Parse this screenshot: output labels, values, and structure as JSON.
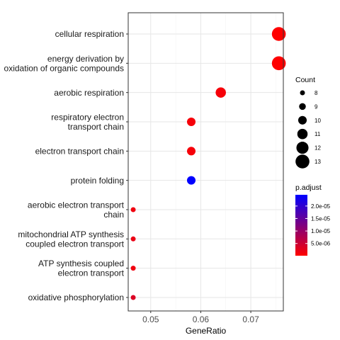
{
  "chart_data": {
    "type": "scatter",
    "xlabel": "GeneRatio",
    "xlim": [
      0.0455,
      0.0765
    ],
    "xticks": [
      0.05,
      0.06,
      0.07
    ],
    "xtick_labels": [
      "0.05",
      "0.06",
      "0.07"
    ],
    "grid": true,
    "legend_placement": "right",
    "categories": [
      "cellular respiration",
      "energy derivation by\noxidation of organic compounds",
      "aerobic respiration",
      "respiratory electron\ntransport chain",
      "electron transport chain",
      "protein folding",
      "aerobic electron transport\nchain",
      "mitochondrial ATP synthesis\ncoupled electron transport",
      "ATP synthesis coupled\nelectron transport",
      "oxidative phosphorylation"
    ],
    "points": [
      {
        "category": "cellular respiration",
        "x": 0.0756,
        "count": 13,
        "p_adjust": 1e-07
      },
      {
        "category": "energy derivation by\noxidation of organic compounds",
        "x": 0.0756,
        "count": 13,
        "p_adjust": 2e-07
      },
      {
        "category": "aerobic respiration",
        "x": 0.064,
        "count": 11,
        "p_adjust": 1e-06
      },
      {
        "category": "respiratory electron\ntransport chain",
        "x": 0.0581,
        "count": 10,
        "p_adjust": 1e-06
      },
      {
        "category": "electron transport chain",
        "x": 0.0581,
        "count": 10,
        "p_adjust": 1e-06
      },
      {
        "category": "protein folding",
        "x": 0.0581,
        "count": 10,
        "p_adjust": 2.45e-05
      },
      {
        "category": "aerobic electron transport\nchain",
        "x": 0.0465,
        "count": 8,
        "p_adjust": 1.5e-06
      },
      {
        "category": "mitochondrial ATP synthesis\ncoupled electron transport",
        "x": 0.0465,
        "count": 8,
        "p_adjust": 2e-06
      },
      {
        "category": "ATP synthesis coupled\nelectron transport",
        "x": 0.0465,
        "count": 8,
        "p_adjust": 1.5e-06
      },
      {
        "category": "oxidative phosphorylation",
        "x": 0.0465,
        "count": 8,
        "p_adjust": 3.5e-06
      }
    ],
    "size_legend": {
      "title": "Count",
      "values": [
        8,
        9,
        10,
        11,
        12,
        13
      ],
      "labels": [
        "8",
        "9",
        "10",
        "11",
        "12",
        "13"
      ]
    },
    "color_legend": {
      "title": "p.adjust",
      "range": [
        1e-07,
        2.45e-05
      ],
      "ticks": [
        2e-05,
        1.5e-05,
        1e-05,
        5e-06
      ],
      "labels": [
        "2.0e-05",
        "1.5e-05",
        "1.0e-05",
        "5.0e-06"
      ],
      "low_color": "#ff0000",
      "high_color": "#0000ff"
    }
  }
}
